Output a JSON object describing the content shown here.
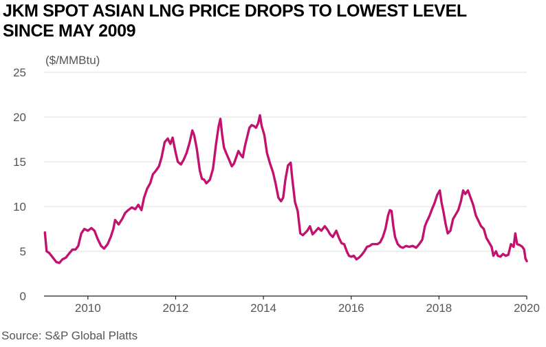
{
  "header": {
    "title_line1": "JKM SPOT ASIAN LNG PRICE DROPS TO LOWEST LEVEL",
    "title_line2": "SINCE MAY 2009"
  },
  "footer": {
    "source": "Source: S&P Global Platts"
  },
  "chart_data": {
    "type": "line",
    "title": "JKM SPOT ASIAN LNG PRICE DROPS TO LOWEST LEVEL SINCE MAY 2009",
    "ylabel": "($/MMBtu)",
    "xlabel": "",
    "xlim": [
      2009.0,
      2020.0
    ],
    "ylim": [
      0,
      25
    ],
    "yticks": [
      0,
      5,
      10,
      15,
      20,
      25
    ],
    "xticks": [
      2010,
      2012,
      2014,
      2016,
      2018,
      2020
    ],
    "grid": "horizontal",
    "color": "#C2116E",
    "series": [
      {
        "name": "",
        "points": [
          [
            2009.02,
            7.1
          ],
          [
            2009.06,
            5.0
          ],
          [
            2009.12,
            4.8
          ],
          [
            2009.2,
            4.3
          ],
          [
            2009.28,
            3.8
          ],
          [
            2009.35,
            3.7
          ],
          [
            2009.42,
            4.1
          ],
          [
            2009.5,
            4.3
          ],
          [
            2009.58,
            4.8
          ],
          [
            2009.65,
            5.2
          ],
          [
            2009.72,
            5.2
          ],
          [
            2009.78,
            5.6
          ],
          [
            2009.85,
            7.0
          ],
          [
            2009.92,
            7.5
          ],
          [
            2010.0,
            7.3
          ],
          [
            2010.08,
            7.6
          ],
          [
            2010.15,
            7.3
          ],
          [
            2010.22,
            6.4
          ],
          [
            2010.3,
            5.6
          ],
          [
            2010.37,
            5.3
          ],
          [
            2010.45,
            5.8
          ],
          [
            2010.52,
            6.6
          ],
          [
            2010.58,
            7.5
          ],
          [
            2010.62,
            8.5
          ],
          [
            2010.7,
            8.0
          ],
          [
            2010.78,
            8.6
          ],
          [
            2010.85,
            9.3
          ],
          [
            2010.92,
            9.6
          ],
          [
            2011.0,
            9.9
          ],
          [
            2011.08,
            9.7
          ],
          [
            2011.15,
            10.2
          ],
          [
            2011.22,
            9.6
          ],
          [
            2011.28,
            11.0
          ],
          [
            2011.35,
            12.0
          ],
          [
            2011.42,
            12.6
          ],
          [
            2011.48,
            13.6
          ],
          [
            2011.55,
            14.0
          ],
          [
            2011.62,
            14.5
          ],
          [
            2011.68,
            15.5
          ],
          [
            2011.75,
            17.2
          ],
          [
            2011.82,
            17.6
          ],
          [
            2011.88,
            17.0
          ],
          [
            2011.93,
            17.7
          ],
          [
            2012.0,
            16.0
          ],
          [
            2012.05,
            15.0
          ],
          [
            2012.12,
            14.7
          ],
          [
            2012.18,
            15.2
          ],
          [
            2012.25,
            16.0
          ],
          [
            2012.32,
            17.2
          ],
          [
            2012.38,
            18.5
          ],
          [
            2012.42,
            18.0
          ],
          [
            2012.48,
            16.5
          ],
          [
            2012.55,
            14.0
          ],
          [
            2012.6,
            13.1
          ],
          [
            2012.65,
            13.0
          ],
          [
            2012.7,
            12.6
          ],
          [
            2012.78,
            13.0
          ],
          [
            2012.85,
            14.2
          ],
          [
            2012.92,
            17.0
          ],
          [
            2012.98,
            19.0
          ],
          [
            2013.02,
            19.8
          ],
          [
            2013.06,
            18.0
          ],
          [
            2013.1,
            16.6
          ],
          [
            2013.15,
            16.0
          ],
          [
            2013.22,
            15.2
          ],
          [
            2013.28,
            14.5
          ],
          [
            2013.33,
            14.8
          ],
          [
            2013.38,
            15.5
          ],
          [
            2013.43,
            16.2
          ],
          [
            2013.48,
            15.8
          ],
          [
            2013.53,
            15.5
          ],
          [
            2013.58,
            16.8
          ],
          [
            2013.63,
            17.8
          ],
          [
            2013.68,
            18.8
          ],
          [
            2013.73,
            19.1
          ],
          [
            2013.78,
            19.0
          ],
          [
            2013.83,
            18.8
          ],
          [
            2013.88,
            19.3
          ],
          [
            2013.92,
            20.2
          ],
          [
            2013.96,
            19.0
          ],
          [
            2014.02,
            18.0
          ],
          [
            2014.08,
            16.0
          ],
          [
            2014.15,
            14.8
          ],
          [
            2014.22,
            13.8
          ],
          [
            2014.28,
            12.5
          ],
          [
            2014.34,
            11.0
          ],
          [
            2014.4,
            10.6
          ],
          [
            2014.45,
            11.0
          ],
          [
            2014.5,
            13.0
          ],
          [
            2014.56,
            14.6
          ],
          [
            2014.62,
            14.9
          ],
          [
            2014.66,
            13.0
          ],
          [
            2014.72,
            10.5
          ],
          [
            2014.78,
            9.5
          ],
          [
            2014.84,
            7.0
          ],
          [
            2014.9,
            6.8
          ],
          [
            2015.0,
            7.3
          ],
          [
            2015.06,
            7.8
          ],
          [
            2015.12,
            6.9
          ],
          [
            2015.18,
            7.2
          ],
          [
            2015.25,
            7.6
          ],
          [
            2015.32,
            7.3
          ],
          [
            2015.4,
            7.8
          ],
          [
            2015.46,
            7.4
          ],
          [
            2015.52,
            6.9
          ],
          [
            2015.58,
            6.6
          ],
          [
            2015.66,
            7.3
          ],
          [
            2015.72,
            6.5
          ],
          [
            2015.78,
            5.9
          ],
          [
            2015.84,
            5.8
          ],
          [
            2015.9,
            5.0
          ],
          [
            2015.95,
            4.5
          ],
          [
            2016.0,
            4.4
          ],
          [
            2016.06,
            4.5
          ],
          [
            2016.12,
            4.1
          ],
          [
            2016.18,
            4.3
          ],
          [
            2016.24,
            4.6
          ],
          [
            2016.3,
            5.0
          ],
          [
            2016.36,
            5.5
          ],
          [
            2016.42,
            5.6
          ],
          [
            2016.48,
            5.8
          ],
          [
            2016.54,
            5.8
          ],
          [
            2016.6,
            5.8
          ],
          [
            2016.66,
            6.0
          ],
          [
            2016.72,
            6.6
          ],
          [
            2016.78,
            7.5
          ],
          [
            2016.84,
            9.0
          ],
          [
            2016.88,
            9.6
          ],
          [
            2016.92,
            9.5
          ],
          [
            2016.96,
            7.8
          ],
          [
            2017.0,
            6.6
          ],
          [
            2017.06,
            5.8
          ],
          [
            2017.12,
            5.5
          ],
          [
            2017.18,
            5.4
          ],
          [
            2017.25,
            5.6
          ],
          [
            2017.32,
            5.5
          ],
          [
            2017.4,
            5.6
          ],
          [
            2017.48,
            5.4
          ],
          [
            2017.55,
            5.8
          ],
          [
            2017.62,
            6.3
          ],
          [
            2017.68,
            7.8
          ],
          [
            2017.72,
            8.3
          ],
          [
            2017.78,
            8.9
          ],
          [
            2017.84,
            9.7
          ],
          [
            2017.9,
            10.4
          ],
          [
            2017.96,
            11.3
          ],
          [
            2018.02,
            11.8
          ],
          [
            2018.06,
            10.4
          ],
          [
            2018.1,
            9.5
          ],
          [
            2018.15,
            8.1
          ],
          [
            2018.2,
            7.0
          ],
          [
            2018.26,
            7.3
          ],
          [
            2018.32,
            8.6
          ],
          [
            2018.38,
            9.1
          ],
          [
            2018.44,
            9.6
          ],
          [
            2018.5,
            10.6
          ],
          [
            2018.55,
            11.8
          ],
          [
            2018.6,
            11.4
          ],
          [
            2018.66,
            11.8
          ],
          [
            2018.72,
            11.0
          ],
          [
            2018.78,
            10.2
          ],
          [
            2018.84,
            9.0
          ],
          [
            2018.9,
            8.4
          ],
          [
            2018.96,
            7.8
          ],
          [
            2019.02,
            7.5
          ],
          [
            2019.08,
            6.5
          ],
          [
            2019.14,
            6.0
          ],
          [
            2019.2,
            5.5
          ],
          [
            2019.24,
            4.5
          ],
          [
            2019.3,
            5.0
          ],
          [
            2019.34,
            4.5
          ],
          [
            2019.4,
            4.4
          ],
          [
            2019.46,
            4.7
          ],
          [
            2019.52,
            4.5
          ],
          [
            2019.58,
            4.6
          ],
          [
            2019.64,
            5.8
          ],
          [
            2019.7,
            5.5
          ],
          [
            2019.74,
            7.0
          ],
          [
            2019.78,
            5.8
          ],
          [
            2019.84,
            5.7
          ],
          [
            2019.9,
            5.5
          ],
          [
            2019.94,
            5.2
          ],
          [
            2019.97,
            4.2
          ],
          [
            2020.0,
            3.9
          ]
        ]
      }
    ]
  }
}
